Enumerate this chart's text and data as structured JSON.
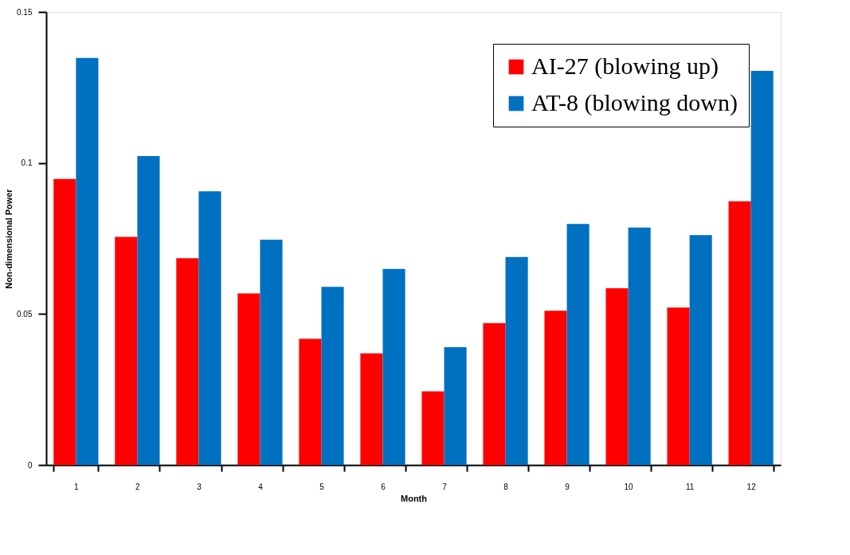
{
  "chart_data": {
    "type": "bar",
    "xlabel": "Month",
    "ylabel": "Non-dimensional Power",
    "categories": [
      "1",
      "2",
      "3",
      "4",
      "5",
      "6",
      "7",
      "8",
      "9",
      "10",
      "11",
      "12"
    ],
    "series": [
      {
        "name": "AI-27 (blowing up)",
        "color": "#ff0000",
        "values": [
          0.0947,
          0.0755,
          0.0685,
          0.0568,
          0.0418,
          0.037,
          0.0244,
          0.047,
          0.0511,
          0.0585,
          0.0521,
          0.0873
        ]
      },
      {
        "name": "AT-8 (blowing down)",
        "color": "#0070c0",
        "values": [
          0.1348,
          0.1023,
          0.0906,
          0.0746,
          0.059,
          0.0649,
          0.039,
          0.0689,
          0.0798,
          0.0786,
          0.0761,
          0.1305
        ]
      }
    ],
    "ylim": [
      0,
      0.15
    ],
    "yticks": [
      0,
      0.05,
      0.1,
      0.15
    ],
    "grid": false,
    "legend": "top right"
  }
}
